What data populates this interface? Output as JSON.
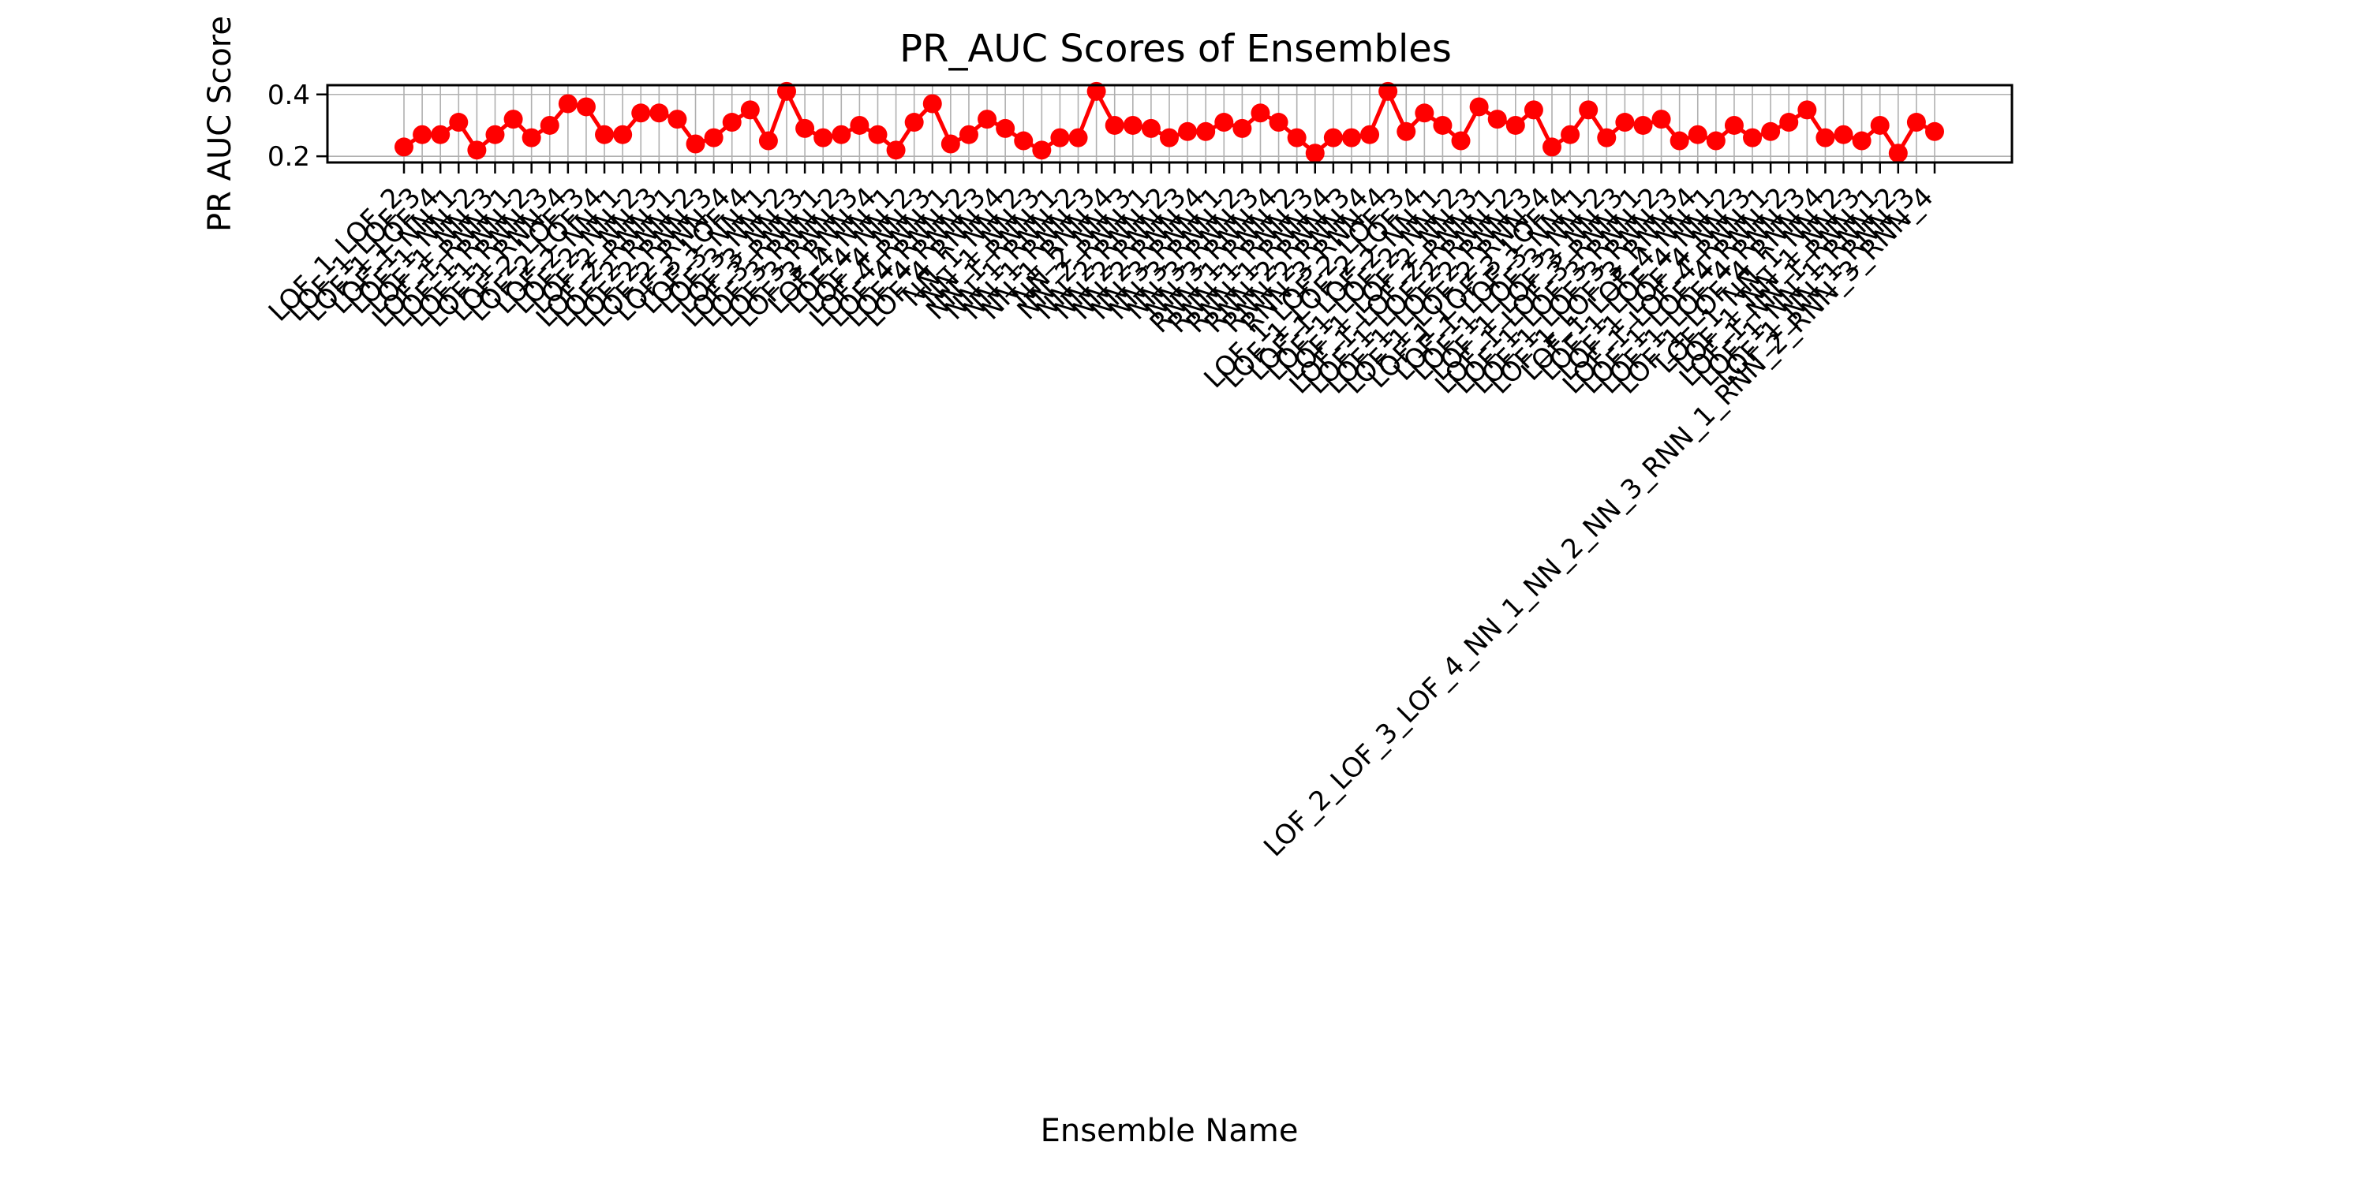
{
  "chart_data": {
    "type": "line",
    "title": "PR_AUC Scores of Ensembles",
    "xlabel": "Ensemble Name",
    "ylabel": "PR AUC Score",
    "yticks": [
      0.2,
      0.4
    ],
    "ylim": [
      0.18,
      0.43
    ],
    "grid": true,
    "marker": "circle",
    "color": "#ff0000",
    "categories": [
      "LOF_1_LOF_2",
      "LOF_1_LOF_3",
      "LOF_1_LOF_4",
      "LOF_1_NN_1",
      "LOF_1_NN_2",
      "LOF_1_NN_3",
      "LOF_1_RNN_1",
      "LOF_1_RNN_2",
      "LOF_1_RNN_3",
      "LOF_1_RNN_4",
      "LOF_2_LOF_3",
      "LOF_2_LOF_4",
      "LOF_2_NN_1",
      "LOF_2_NN_2",
      "LOF_2_NN_3",
      "LOF_2_RNN_1",
      "LOF_2_RNN_2",
      "LOF_2_RNN_3",
      "LOF_2_RNN_4",
      "LOF_3_LOF_4",
      "LOF_3_NN_1",
      "LOF_3_NN_2",
      "LOF_3_NN_3",
      "LOF_3_RNN_1",
      "LOF_3_RNN_2",
      "LOF_3_RNN_3",
      "LOF_3_RNN_4",
      "LOF_4_NN_1",
      "LOF_4_NN_2",
      "LOF_4_NN_3",
      "LOF_4_RNN_1",
      "LOF_4_RNN_2",
      "LOF_4_RNN_3",
      "LOF_4_RNN_4",
      "NN_1_NN_2",
      "NN_1_NN_3",
      "NN_1_RNN_1",
      "NN_1_RNN_2",
      "NN_1_RNN_3",
      "NN_1_RNN_4",
      "NN_2_NN_3",
      "NN_2_RNN_1",
      "NN_2_RNN_2",
      "NN_2_RNN_3",
      "NN_2_RNN_4",
      "NN_3_RNN_1",
      "NN_3_RNN_2",
      "NN_3_RNN_3",
      "NN_3_RNN_4",
      "RNN_1_RNN_2",
      "RNN_1_RNN_3",
      "RNN_1_RNN_4",
      "RNN_2_RNN_3",
      "RNN_2_RNN_4",
      "RNN_3_RNN_4",
      "LOF_1_LOF_2_LOF_3",
      "LOF_1_LOF_2_LOF_4",
      "LOF_1_LOF_2_NN_1",
      "LOF_1_LOF_2_NN_2",
      "LOF_1_LOF_2_NN_3",
      "LOF_1_LOF_2_RNN_1",
      "LOF_1_LOF_2_RNN_2",
      "LOF_1_LOF_2_RNN_3",
      "LOF_1_LOF_2_RNN_4",
      "LOF_1_LOF_3_LOF_4",
      "LOF_1_LOF_3_NN_1",
      "LOF_1_LOF_3_NN_2",
      "LOF_1_LOF_3_NN_3",
      "LOF_1_LOF_3_RNN_1",
      "LOF_1_LOF_3_RNN_2",
      "LOF_1_LOF_3_RNN_3",
      "LOF_1_LOF_3_RNN_4",
      "LOF_1_LOF_4_NN_1",
      "LOF_1_LOF_4_NN_2",
      "LOF_1_LOF_4_NN_3",
      "LOF_1_LOF_4_RNN_1",
      "LOF_1_LOF_4_RNN_2",
      "LOF_1_LOF_4_RNN_3",
      "LOF_1_LOF_4_RNN_4",
      "LOF_1_NN_1_NN_2",
      "LOF_1_NN_1_NN_3",
      "LOF_1_NN_1_RNN_1",
      "LOF_1_NN_1_RNN_2",
      "LOF_1_NN_1_RNN_3",
      "LOF_2_LOF_3_LOF_4_NN_1_NN_2_NN_3_RNN_1_RNN_2_RNN_3_RNN_4"
    ],
    "values": [
      0.23,
      0.27,
      0.27,
      0.31,
      0.22,
      0.27,
      0.32,
      0.26,
      0.3,
      0.37,
      0.36,
      0.27,
      0.27,
      0.34,
      0.34,
      0.32,
      0.24,
      0.26,
      0.31,
      0.35,
      0.25,
      0.41,
      0.29,
      0.26,
      0.27,
      0.3,
      0.27,
      0.22,
      0.31,
      0.37,
      0.24,
      0.27,
      0.32,
      0.29,
      0.25,
      0.22,
      0.26,
      0.26,
      0.41,
      0.3,
      0.3,
      0.29,
      0.26,
      0.28,
      0.28,
      0.31,
      0.29,
      0.34,
      0.31,
      0.26,
      0.21,
      0.26,
      0.26,
      0.27,
      0.41,
      0.28,
      0.34,
      0.3,
      0.25,
      0.36,
      0.32,
      0.3,
      0.35,
      0.23,
      0.27,
      0.35,
      0.26,
      0.31,
      0.3,
      0.32,
      0.25,
      0.27,
      0.25,
      0.3,
      0.26,
      0.28,
      0.31,
      0.35,
      0.26,
      0.27,
      0.25,
      0.3,
      0.21,
      0.31,
      0.28
    ]
  }
}
